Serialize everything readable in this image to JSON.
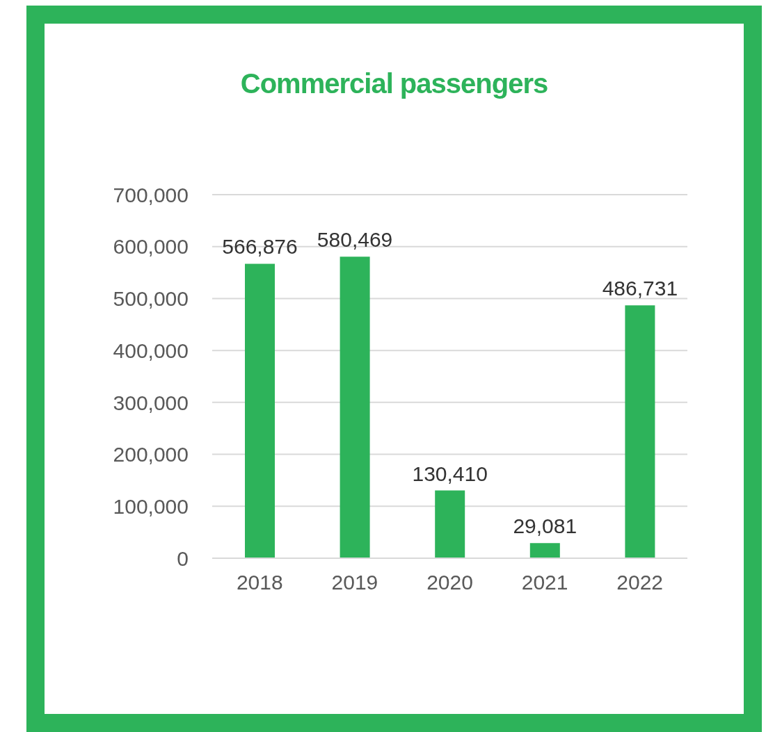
{
  "chart_data": {
    "type": "bar",
    "title": "Commercial passengers",
    "categories": [
      "2018",
      "2019",
      "2020",
      "2021",
      "2022"
    ],
    "values": [
      566876,
      580469,
      130410,
      29081,
      486731
    ],
    "value_labels": [
      "566,876",
      "580,469",
      "130,410",
      "29,081",
      "486,731"
    ],
    "color": "#2db35a",
    "ylim": [
      0,
      700000
    ],
    "yticks": [
      0,
      {
        "value": 100000,
        "label": "100,000"
      },
      {
        "value": 200000,
        "label": "200,000"
      },
      {
        "value": 300000,
        "label": "300,000"
      },
      {
        "value": 400000,
        "label": "400,000"
      },
      {
        "value": 500000,
        "label": "500,000"
      },
      {
        "value": 600000,
        "label": "600,000"
      },
      {
        "value": 700000,
        "label": "700,000"
      }
    ],
    "grid": "y"
  }
}
